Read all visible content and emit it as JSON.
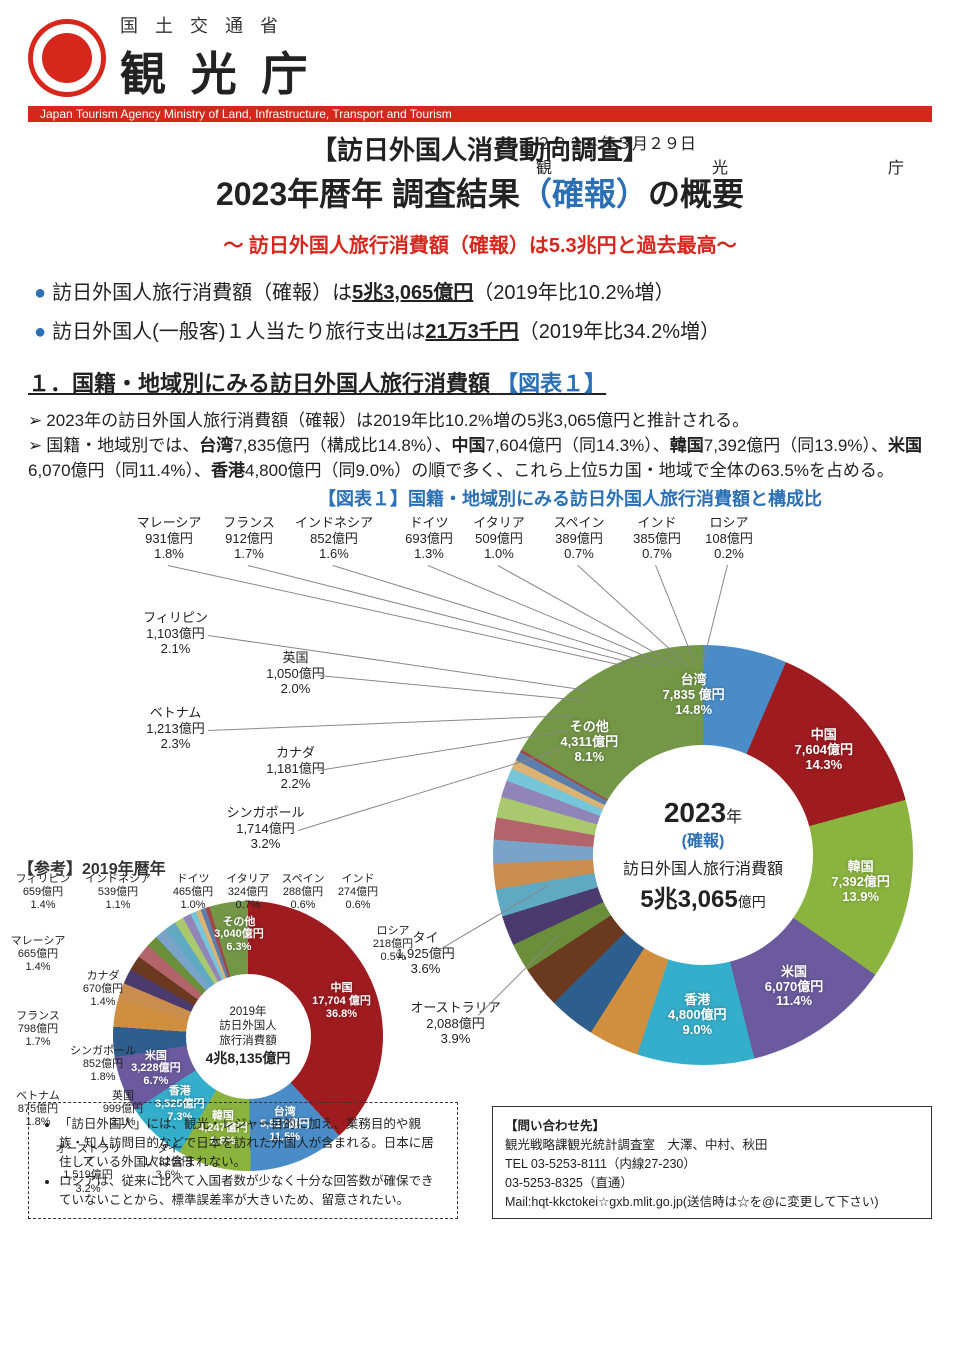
{
  "header": {
    "mlit": "国 土 交 通 省",
    "agency": "観 光 庁",
    "bar": "Japan Tourism Agency    Ministry of Land, Infrastructure, Transport and Tourism"
  },
  "title": {
    "date_line1": "２０２４年３月２９日",
    "date_line2": "観　　　光　　　庁",
    "survey": "【訪日外国人消費動向調査】",
    "main_a": "2023年暦年 調査結果",
    "main_b": "（確報）",
    "main_c": "の概要",
    "sub": "～ 訪日外国人旅行消費額（確報）は5.3兆円と過去最高～"
  },
  "bullets": [
    {
      "pre": "訪日外国人旅行消費額（確報）は",
      "u": "5兆3,065億円",
      "post": "（2019年比10.2%増）"
    },
    {
      "pre": "訪日外国人(一般客)１人当たり旅行支出は",
      "u": "21万3千円",
      "post": "（2019年比34.2%増）"
    }
  ],
  "section1": {
    "head": "１．国籍・地域別にみる訪日外国人旅行消費額",
    "figref": "【図表１】",
    "body1": "2023年の訪日外国人旅行消費額（確報）は2019年比10.2%増の5兆3,065億円と推計される。",
    "body2_a": "国籍・地域別では、",
    "body2_b": "台湾",
    "body2_c": "7,835億円（構成比14.8%）、",
    "body2_d": "中国",
    "body2_e": "7,604億円（同14.3%）、",
    "body2_f": "韓国",
    "body2_g": "7,392億円（同13.9%）、",
    "body2_h": "米国",
    "body2_i": "6,070億円（同11.4%）、",
    "body2_j": "香港",
    "body2_k": "4,800億円（同9.0%）の順で多く、これら上位5カ国・地域で全体の63.5%を占める。"
  },
  "chart": {
    "title": "【図表１】国籍・地域別にみる訪日外国人旅行消費額と構成比",
    "ref_title": "【参考】2019年暦年",
    "chart2023": {
      "type": "donut",
      "diameter": 420,
      "inner": 220,
      "center": {
        "year": "2023",
        "year_suffix": "年",
        "kakuho": "(確報)",
        "label": "訪日外国人旅行消費額",
        "total": "5兆3,065",
        "total_suffix": "億円"
      },
      "slices": [
        {
          "name": "台湾",
          "amt": "7,835 億円",
          "pct": "14.8%",
          "share": 14.8,
          "color": "#4a8cc7"
        },
        {
          "name": "中国",
          "amt": "7,604億円",
          "pct": "14.3%",
          "share": 14.3,
          "color": "#9e1b20"
        },
        {
          "name": "韓国",
          "amt": "7,392億円",
          "pct": "13.9%",
          "share": 13.9,
          "color": "#8bb43e"
        },
        {
          "name": "米国",
          "amt": "6,070億円",
          "pct": "11.4%",
          "share": 11.4,
          "color": "#6b5a9e"
        },
        {
          "name": "香港",
          "amt": "4,800億円",
          "pct": "9.0%",
          "share": 9.0,
          "color": "#35aecb"
        },
        {
          "name": "オーストラリア",
          "amt": "2,088億円",
          "pct": "3.9%",
          "share": 3.9,
          "color": "#d08f3e",
          "ext": true
        },
        {
          "name": "タイ",
          "amt": "1,925億円",
          "pct": "3.6%",
          "share": 3.6,
          "color": "#2e5e8e",
          "ext": true
        },
        {
          "name": "シンガポール",
          "amt": "1,714億円",
          "pct": "3.2%",
          "share": 3.2,
          "color": "#6b3920",
          "ext": true
        },
        {
          "name": "カナダ",
          "amt": "1,181億円",
          "pct": "2.2%",
          "share": 2.2,
          "color": "#6b8e3a",
          "ext": true
        },
        {
          "name": "ベトナム",
          "amt": "1,213億円",
          "pct": "2.3%",
          "share": 2.3,
          "color": "#4a3a6e",
          "ext": true
        },
        {
          "name": "フィリピン",
          "amt": "1,103億円",
          "pct": "2.1%",
          "share": 2.1,
          "color": "#5fa9c2",
          "ext": true
        },
        {
          "name": "英国",
          "amt": "1,050億円",
          "pct": "2.0%",
          "share": 2.0,
          "color": "#c98e4e",
          "ext": true
        },
        {
          "name": "マレーシア",
          "amt": "931億円",
          "pct": "1.8%",
          "share": 1.8,
          "color": "#7aa3c9",
          "ext": true
        },
        {
          "name": "フランス",
          "amt": "912億円",
          "pct": "1.7%",
          "share": 1.7,
          "color": "#b3636a",
          "ext": true
        },
        {
          "name": "インドネシア",
          "amt": "852億円",
          "pct": "1.6%",
          "share": 1.6,
          "color": "#aac96f",
          "ext": true
        },
        {
          "name": "ドイツ",
          "amt": "693億円",
          "pct": "1.3%",
          "share": 1.3,
          "color": "#9184b8",
          "ext": true
        },
        {
          "name": "イタリア",
          "amt": "509億円",
          "pct": "1.0%",
          "share": 1.0,
          "color": "#76c5d8",
          "ext": true
        },
        {
          "name": "スペイン",
          "amt": "389億円",
          "pct": "0.7%",
          "share": 0.7,
          "color": "#ddb374",
          "ext": true
        },
        {
          "name": "インド",
          "amt": "385億円",
          "pct": "0.7%",
          "share": 0.7,
          "color": "#5d7dab",
          "ext": true
        },
        {
          "name": "ロシア",
          "amt": "108億円",
          "pct": "0.2%",
          "share": 0.2,
          "color": "#a44747",
          "ext": true
        },
        {
          "name": "その他",
          "amt": "4,311億円",
          "pct": "8.1%",
          "share": 8.1,
          "color": "#739647"
        }
      ]
    },
    "chart2019": {
      "type": "donut",
      "diameter": 270,
      "inner": 125,
      "center": {
        "line1": "2019年",
        "line2": "訪日外国人",
        "line3": "旅行消費額",
        "total": "4兆8,135億円"
      },
      "slices": [
        {
          "name": "中国",
          "amt": "17,704 億円",
          "pct": "36.8%",
          "share": 36.8,
          "color": "#9e1b20"
        },
        {
          "name": "台湾",
          "amt": "5,517億円",
          "pct": "11.5%",
          "share": 11.5,
          "color": "#4a8cc7"
        },
        {
          "name": "韓国",
          "amt": "4,247億円",
          "pct": "8.8%",
          "share": 8.8,
          "color": "#8bb43e"
        },
        {
          "name": "香港",
          "amt": "3,525億円",
          "pct": "7.3%",
          "share": 7.3,
          "color": "#35aecb"
        },
        {
          "name": "米国",
          "amt": "3,228億円",
          "pct": "6.7%",
          "share": 6.7,
          "color": "#6b5a9e"
        },
        {
          "name": "タイ",
          "amt": "1,732億円",
          "pct": "3.6%",
          "share": 3.6,
          "color": "#2e5e8e",
          "ext": true
        },
        {
          "name": "オーストラリア",
          "amt": "1,519億円",
          "pct": "3.2%",
          "share": 3.2,
          "color": "#d08f3e",
          "ext": true
        },
        {
          "name": "英国",
          "amt": "999億円",
          "pct": "2.1%",
          "share": 2.1,
          "color": "#c98e4e",
          "ext": true
        },
        {
          "name": "ベトナム",
          "amt": "875億円",
          "pct": "1.8%",
          "share": 1.8,
          "color": "#4a3a6e",
          "ext": true
        },
        {
          "name": "シンガポール",
          "amt": "852億円",
          "pct": "1.8%",
          "share": 1.8,
          "color": "#6b3920",
          "ext": true
        },
        {
          "name": "フランス",
          "amt": "798億円",
          "pct": "1.7%",
          "share": 1.7,
          "color": "#b3636a",
          "ext": true
        },
        {
          "name": "カナダ",
          "amt": "670億円",
          "pct": "1.4%",
          "share": 1.4,
          "color": "#6b8e3a",
          "ext": true
        },
        {
          "name": "マレーシア",
          "amt": "665億円",
          "pct": "1.4%",
          "share": 1.4,
          "color": "#7aa3c9",
          "ext": true
        },
        {
          "name": "フィリピン",
          "amt": "659億円",
          "pct": "1.4%",
          "share": 1.4,
          "color": "#5fa9c2",
          "ext": true
        },
        {
          "name": "インドネシア",
          "amt": "539億円",
          "pct": "1.1%",
          "share": 1.1,
          "color": "#aac96f",
          "ext": true
        },
        {
          "name": "ドイツ",
          "amt": "465億円",
          "pct": "1.0%",
          "share": 1.0,
          "color": "#9184b8",
          "ext": true
        },
        {
          "name": "イタリア",
          "amt": "324億円",
          "pct": "0.7%",
          "share": 0.7,
          "color": "#76c5d8",
          "ext": true
        },
        {
          "name": "スペイン",
          "amt": "288億円",
          "pct": "0.6%",
          "share": 0.6,
          "color": "#ddb374",
          "ext": true
        },
        {
          "name": "インド",
          "amt": "274億円",
          "pct": "0.6%",
          "share": 0.6,
          "color": "#5d7dab",
          "ext": true
        },
        {
          "name": "ロシア",
          "amt": "218億円",
          "pct": "0.5%",
          "share": 0.5,
          "color": "#a44747",
          "ext": true
        },
        {
          "name": "その他",
          "amt": "3,040億円",
          "pct": "6.3%",
          "share": 6.3,
          "color": "#739647"
        }
      ]
    }
  },
  "notes": {
    "n1": "「訪日外国人」には、観光・レジャー目的に加え、業務目的や親族・知人訪問目的などで日本を訪れた外国人が含まれる。日本に居住している外国人は含まれない。",
    "n2": "ロシアは、従来に比べて入国者数が少なく十分な回答数が確保できていないことから、標準誤差率が大きいため、留意されたい。"
  },
  "contact": {
    "head": "【問い合わせ先】",
    "l1": "観光戦略課観光統計調査室　大澤、中村、秋田",
    "l2": "TEL        03-5253-8111（内線27-230）",
    "l3": "             03-5253-8325（直通）",
    "l4": "Mail:hqt-kkctokei☆gxb.mlit.go.jp(送信時は☆を@に変更して下さい)"
  }
}
